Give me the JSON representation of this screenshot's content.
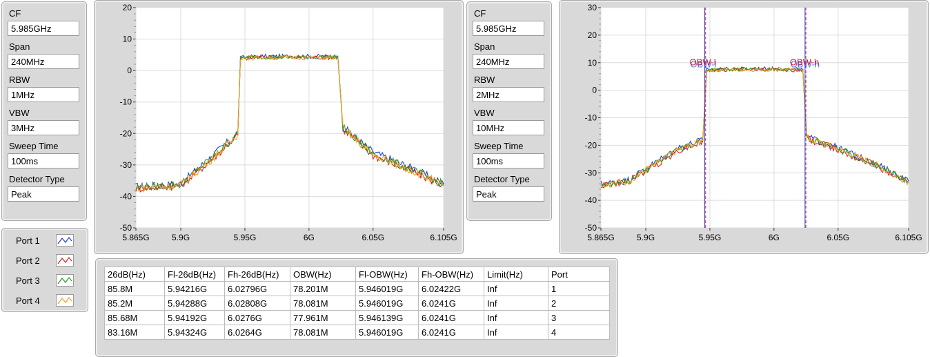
{
  "left_settings": {
    "fields": [
      {
        "label": "CF",
        "value": "5.985GHz"
      },
      {
        "label": "Span",
        "value": "240MHz"
      },
      {
        "label": "RBW",
        "value": "1MHz"
      },
      {
        "label": "VBW",
        "value": "3MHz"
      },
      {
        "label": "Sweep Time",
        "value": "100ms"
      },
      {
        "label": "Detector Type",
        "value": "Peak"
      }
    ]
  },
  "right_settings": {
    "fields": [
      {
        "label": "CF",
        "value": "5.985GHz"
      },
      {
        "label": "Span",
        "value": "240MHz"
      },
      {
        "label": "RBW",
        "value": "2MHz"
      },
      {
        "label": "VBW",
        "value": "10MHz"
      },
      {
        "label": "Sweep Time",
        "value": "100ms"
      },
      {
        "label": "Detector Type",
        "value": "Peak"
      }
    ]
  },
  "legend": [
    {
      "label": "Port 1",
      "color": "#1f3fe0"
    },
    {
      "label": "Port 2",
      "color": "#e01f1f"
    },
    {
      "label": "Port 3",
      "color": "#1fa01f"
    },
    {
      "label": "Port 4",
      "color": "#f0a020"
    }
  ],
  "chart_data": [
    {
      "type": "line",
      "x_ticks": [
        "5.865G",
        "5.9G",
        "5.95G",
        "6G",
        "6.05G",
        "6.105G"
      ],
      "x_tick_values": [
        5.865,
        5.9,
        5.95,
        6.0,
        6.05,
        6.105
      ],
      "xlim": [
        5.865,
        6.105
      ],
      "ylim": [
        -50,
        20
      ],
      "y_ticks": [
        "20",
        "10",
        "0",
        "-10",
        "-20",
        "-30",
        "-40",
        "-50"
      ],
      "grid": true,
      "series": [
        {
          "name": "Port 1",
          "color": "#1f3fe0",
          "x": [
            5.865,
            5.9,
            5.925,
            5.9445,
            5.9465,
            5.96,
            6.0,
            6.0225,
            6.0265,
            6.05,
            6.08,
            6.105
          ],
          "y": [
            -37,
            -36,
            -27,
            -20,
            4,
            4.5,
            4.5,
            4.5,
            -18,
            -26,
            -31,
            -36
          ]
        },
        {
          "name": "Port 2",
          "color": "#e01f1f",
          "x": [
            5.865,
            5.9,
            5.925,
            5.9445,
            5.9465,
            5.96,
            6.0,
            6.0225,
            6.0265,
            6.05,
            6.08,
            6.105
          ],
          "y": [
            -37.5,
            -36.5,
            -28,
            -20.5,
            3.8,
            4.2,
            4.2,
            4.2,
            -18.5,
            -27,
            -32,
            -36.5
          ]
        },
        {
          "name": "Port 3",
          "color": "#1fa01f",
          "x": [
            5.865,
            5.9,
            5.925,
            5.9445,
            5.9465,
            5.96,
            6.0,
            6.0225,
            6.0265,
            6.05,
            6.08,
            6.105
          ],
          "y": [
            -37.2,
            -36.2,
            -27.5,
            -20.2,
            4.1,
            4.3,
            4.3,
            4.3,
            -18.2,
            -26.5,
            -31.5,
            -36.2
          ]
        },
        {
          "name": "Port 4",
          "color": "#f0a020",
          "x": [
            5.865,
            5.9,
            5.925,
            5.9445,
            5.9465,
            5.96,
            6.0,
            6.0225,
            6.0265,
            6.05,
            6.08,
            6.105
          ],
          "y": [
            -37.4,
            -36.4,
            -27.8,
            -20.4,
            3.9,
            4.1,
            4.1,
            4.1,
            -18.4,
            -26.8,
            -31.8,
            -36.4
          ]
        }
      ]
    },
    {
      "type": "line",
      "x_ticks": [
        "5.865G",
        "5.9G",
        "5.95G",
        "6G",
        "6.05G",
        "6.105G"
      ],
      "x_tick_values": [
        5.865,
        5.9,
        5.95,
        6.0,
        6.05,
        6.105
      ],
      "xlim": [
        5.865,
        6.105
      ],
      "ylim": [
        -50,
        30
      ],
      "y_ticks": [
        "30",
        "20",
        "10",
        "0",
        "-10",
        "-20",
        "-30",
        "-40",
        "-50"
      ],
      "grid": true,
      "markers": [
        {
          "label": "OBW-l",
          "x": 5.946019,
          "colors": [
            "#1f3fe0",
            "#e01f1f"
          ]
        },
        {
          "label": "OBW-h",
          "x": 6.02422,
          "colors": [
            "#1f3fe0",
            "#e01f1f"
          ]
        }
      ],
      "series": [
        {
          "name": "Port 1",
          "color": "#1f3fe0",
          "x": [
            5.865,
            5.885,
            5.905,
            5.925,
            5.9445,
            5.9475,
            5.97,
            6.0,
            6.0225,
            6.0255,
            6.05,
            6.08,
            6.105
          ],
          "y": [
            -34,
            -33,
            -27,
            -21,
            -18,
            7.5,
            7.8,
            7.8,
            7.5,
            -17,
            -21,
            -27,
            -33
          ]
        },
        {
          "name": "Port 2",
          "color": "#e01f1f",
          "x": [
            5.865,
            5.885,
            5.905,
            5.925,
            5.9445,
            5.9475,
            5.97,
            6.0,
            6.0225,
            6.0255,
            6.05,
            6.08,
            6.105
          ],
          "y": [
            -34.5,
            -33.5,
            -28,
            -22,
            -18.5,
            7.2,
            7.5,
            7.5,
            7.2,
            -17.5,
            -21.5,
            -27.5,
            -33.5
          ]
        },
        {
          "name": "Port 3",
          "color": "#1fa01f",
          "x": [
            5.865,
            5.885,
            5.905,
            5.925,
            5.9445,
            5.9475,
            5.97,
            6.0,
            6.0225,
            6.0255,
            6.05,
            6.08,
            6.105
          ],
          "y": [
            -34.2,
            -33.2,
            -27.5,
            -21.5,
            -18.2,
            7.4,
            7.6,
            7.6,
            7.4,
            -17.2,
            -21.2,
            -27.2,
            -33.2
          ]
        },
        {
          "name": "Port 4",
          "color": "#f0a020",
          "x": [
            5.865,
            5.885,
            5.905,
            5.925,
            5.9445,
            5.9475,
            5.97,
            6.0,
            6.0225,
            6.0255,
            6.05,
            6.08,
            6.105
          ],
          "y": [
            -34.3,
            -33.3,
            -27.7,
            -21.7,
            -18.3,
            7.3,
            7.5,
            7.5,
            7.3,
            -17.3,
            -21.3,
            -27.3,
            -33.3
          ]
        }
      ]
    }
  ],
  "results_table": {
    "headers": [
      "26dB(Hz)",
      "Fl-26dB(Hz)",
      "Fh-26dB(Hz)",
      "OBW(Hz)",
      "Fl-OBW(Hz)",
      "Fh-OBW(Hz)",
      "Limit(Hz)",
      "Port"
    ],
    "rows": [
      [
        "85.8M",
        "5.94216G",
        "6.02796G",
        "78.201M",
        "5.946019G",
        "6.02422G",
        "Inf",
        "1"
      ],
      [
        "85.2M",
        "5.94288G",
        "6.02808G",
        "78.081M",
        "5.946019G",
        "6.0241G",
        "Inf",
        "2"
      ],
      [
        "85.68M",
        "5.94192G",
        "6.0276G",
        "77.961M",
        "5.946139G",
        "6.0241G",
        "Inf",
        "3"
      ],
      [
        "83.16M",
        "5.94324G",
        "6.0264G",
        "78.081M",
        "5.946019G",
        "6.0241G",
        "Inf",
        "4"
      ]
    ]
  }
}
